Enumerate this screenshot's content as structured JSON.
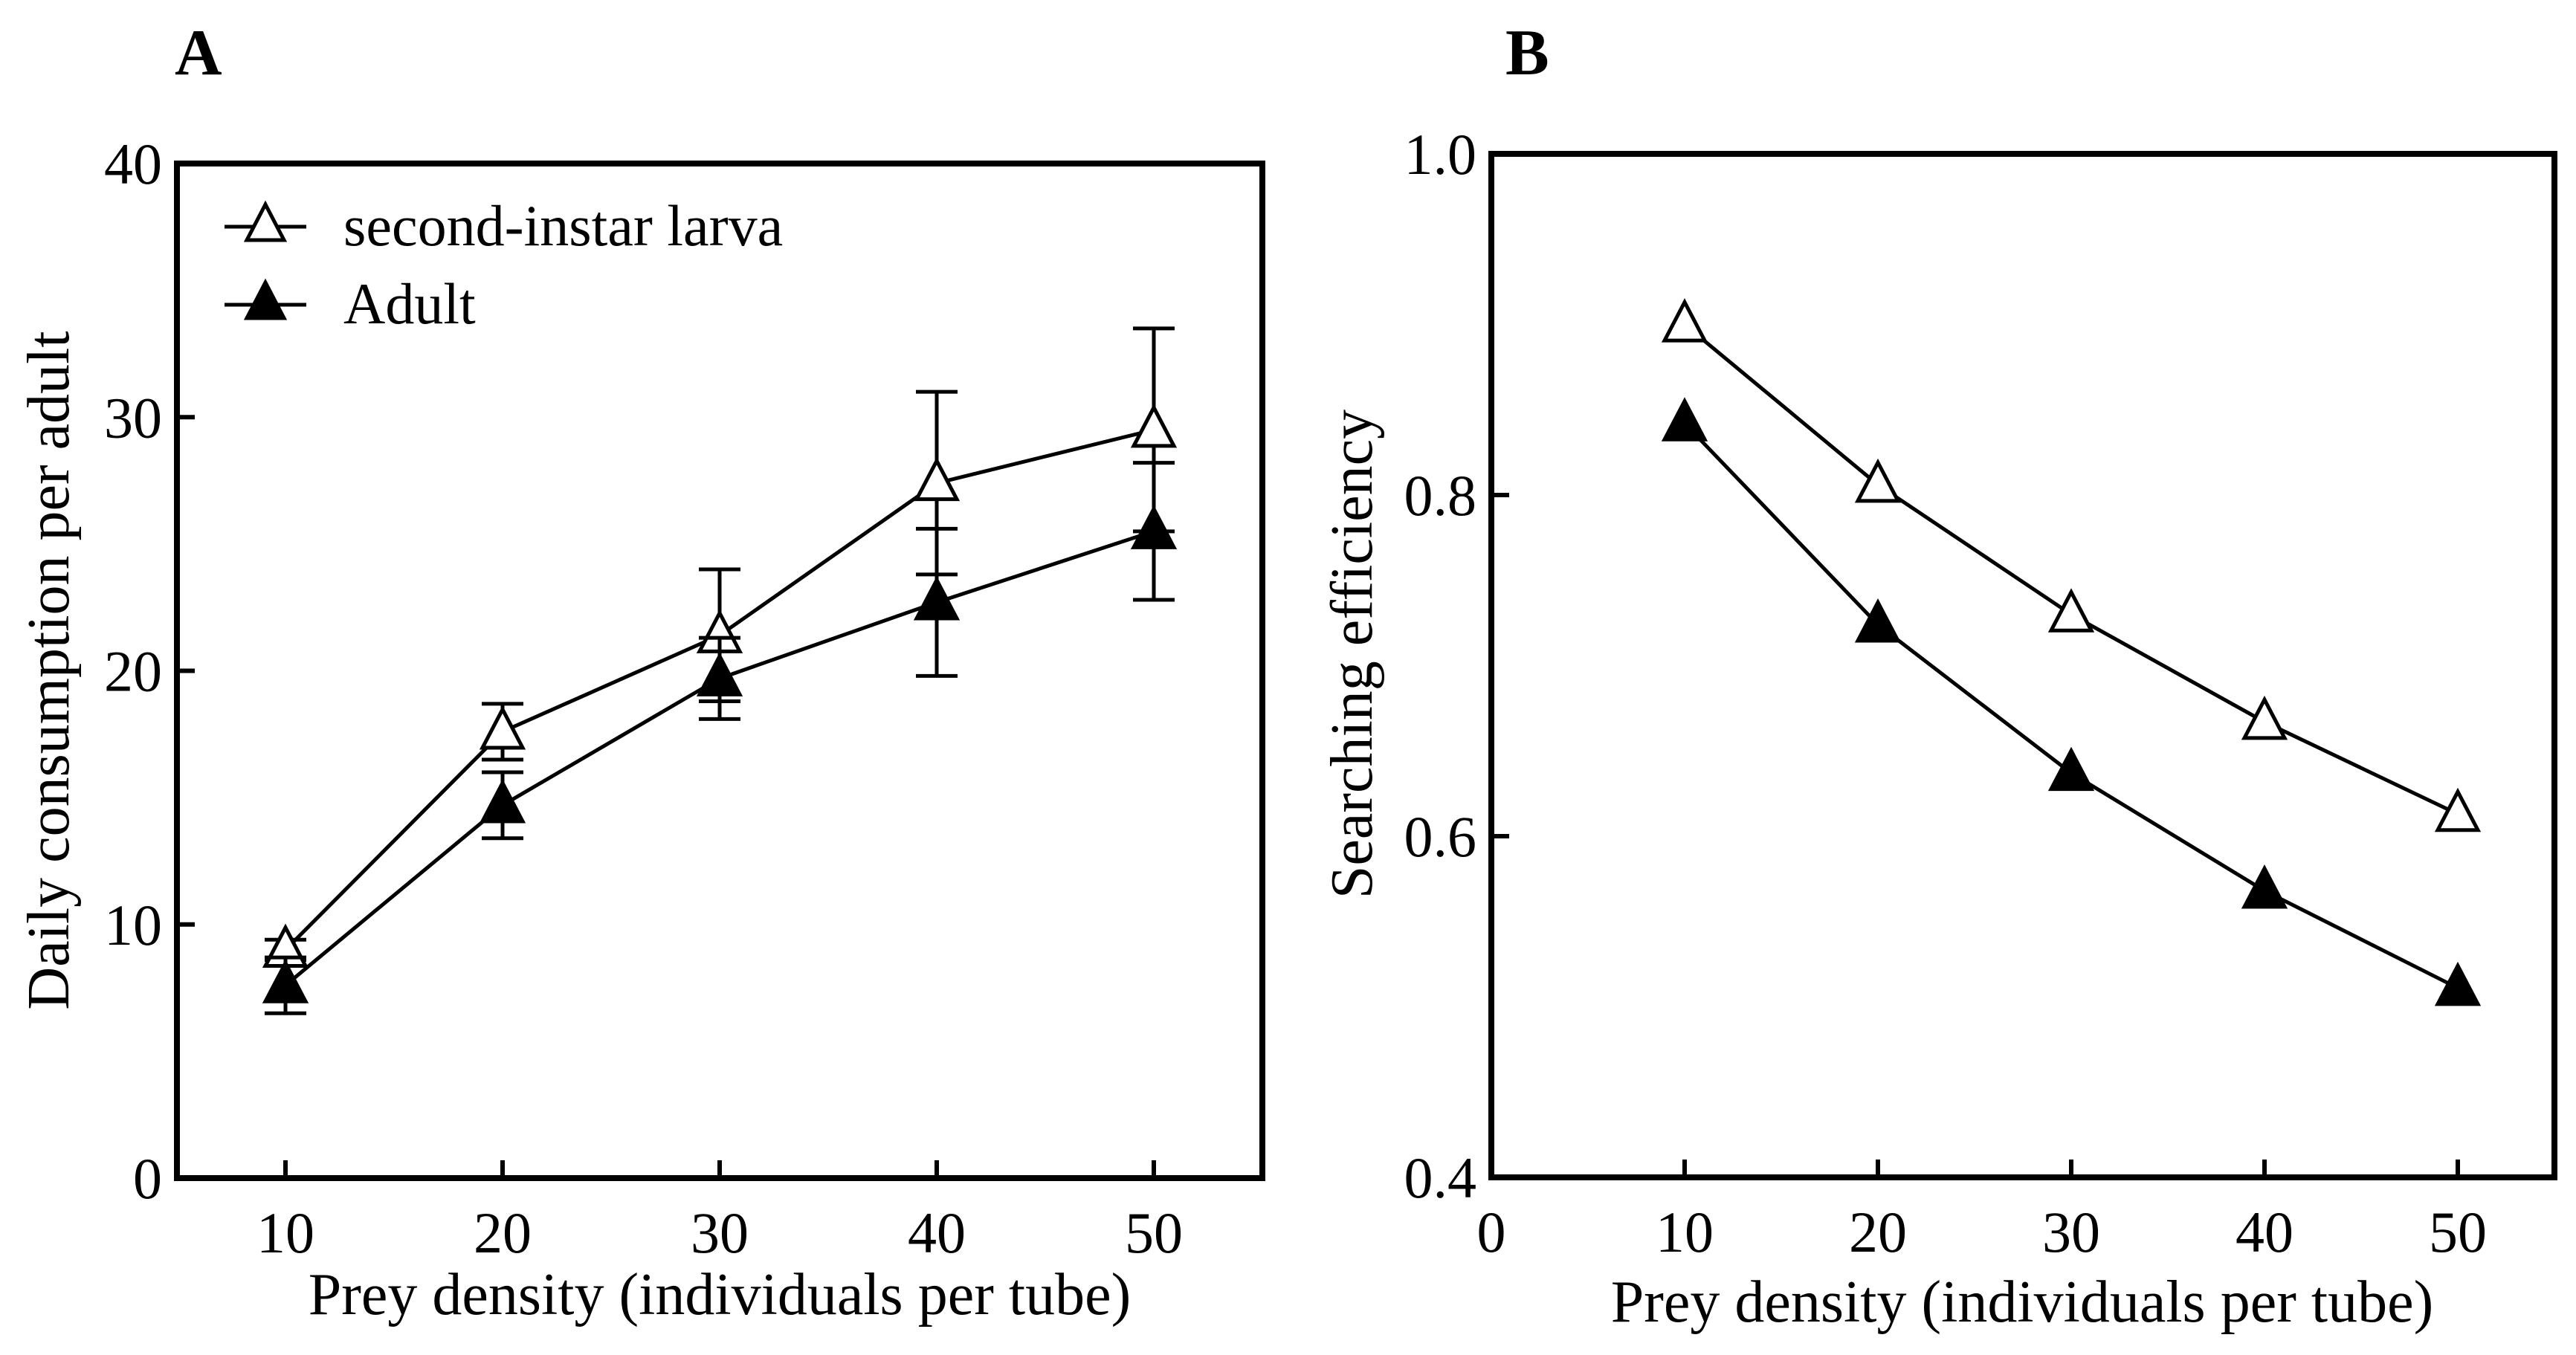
{
  "chart_data": [
    {
      "panel": "A",
      "type": "line",
      "xlabel": "Prey density (individuals per tube)",
      "ylabel": "Daily consumption per adult",
      "xlim": [
        5,
        55
      ],
      "ylim": [
        0,
        40
      ],
      "xticks": [
        10,
        20,
        30,
        40,
        50
      ],
      "yticks": [
        0,
        10,
        20,
        30,
        40
      ],
      "x": [
        10,
        20,
        30,
        40,
        50
      ],
      "series": [
        {
          "name": "second-instar larva",
          "marker": "open-triangle",
          "values": [
            9.0,
            17.6,
            21.4,
            27.4,
            29.5
          ],
          "error": [
            0.4,
            1.1,
            2.6,
            3.6,
            4.0
          ]
        },
        {
          "name": "Adult",
          "marker": "filled-triangle",
          "values": [
            7.6,
            14.7,
            19.7,
            22.7,
            25.5
          ],
          "error": [
            1.1,
            1.3,
            1.6,
            2.9,
            2.7
          ]
        }
      ],
      "legend": "top-left"
    },
    {
      "panel": "B",
      "type": "line",
      "xlabel": "Prey density (individuals per tube)",
      "ylabel": "Searching efficiency",
      "xlim": [
        0,
        55
      ],
      "ylim": [
        0.4,
        1.0
      ],
      "xticks": [
        0,
        10,
        20,
        30,
        40,
        50
      ],
      "yticks": [
        "0.4",
        "0.6",
        "0.8",
        "1.0"
      ],
      "x": [
        10,
        20,
        30,
        40,
        50
      ],
      "series": [
        {
          "name": "second-instar larva",
          "marker": "open-triangle",
          "values": [
            0.9,
            0.806,
            0.73,
            0.667,
            0.613
          ]
        },
        {
          "name": "Adult",
          "marker": "filled-triangle",
          "values": [
            0.842,
            0.724,
            0.637,
            0.568,
            0.511
          ]
        }
      ]
    }
  ]
}
